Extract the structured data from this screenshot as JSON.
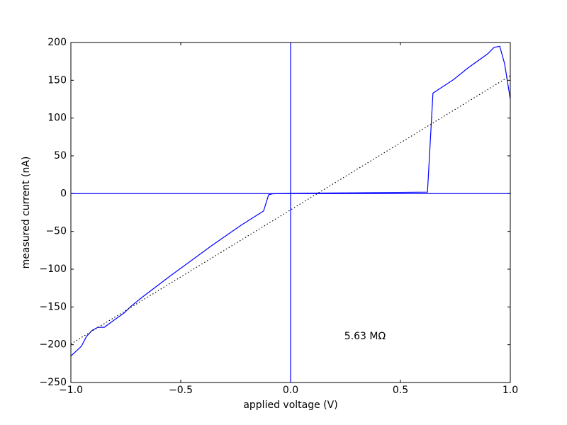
{
  "chart_data": {
    "type": "line",
    "x_label": "applied voltage (V)",
    "y_label": "measured current (nA)",
    "annotation": "5.63 MΩ",
    "xlim": [
      -1,
      1
    ],
    "ylim": [
      -250,
      200
    ],
    "xticks": [
      {
        "value": -1,
        "label": "−1.0"
      },
      {
        "value": -0.5,
        "label": "−0.5"
      },
      {
        "value": 0,
        "label": "0.0"
      },
      0.5,
      {
        "value": 1,
        "label": "1.0"
      }
    ],
    "yticks": [
      {
        "value": -250,
        "label": "−250"
      },
      {
        "value": -200,
        "label": "−200"
      },
      {
        "value": -150,
        "label": "−150"
      },
      {
        "value": -100,
        "label": "−100"
      },
      {
        "value": -50,
        "label": "−50"
      },
      0,
      50,
      100,
      150,
      200
    ],
    "grid": false,
    "hline": 0,
    "vline": 0,
    "series": [
      {
        "color": "#0000ff",
        "linestyle": "solid",
        "x": [
          -1.0,
          -0.952,
          -0.929,
          -0.903,
          -0.877,
          -0.848,
          -0.806,
          -0.758,
          -0.726,
          -0.677,
          -0.548,
          -0.355,
          -0.226,
          -0.123,
          -0.1,
          -0.081,
          0,
          0.623,
          0.648,
          0.742,
          0.806,
          0.897,
          0.926,
          0.952,
          0.974,
          1.0
        ],
        "values": [
          -215,
          -202,
          -189,
          -181,
          -177,
          -177,
          -168,
          -158,
          -149,
          -137.5,
          -109,
          -68,
          -42,
          -23,
          -1.6,
          -0.2,
          0.3,
          2,
          133,
          151,
          166,
          185,
          193.5,
          195,
          172,
          125
        ]
      },
      {
        "color": "#000000",
        "linestyle": "dotted",
        "x": [
          -1,
          1
        ],
        "values": [
          -199,
          156
        ]
      }
    ]
  }
}
